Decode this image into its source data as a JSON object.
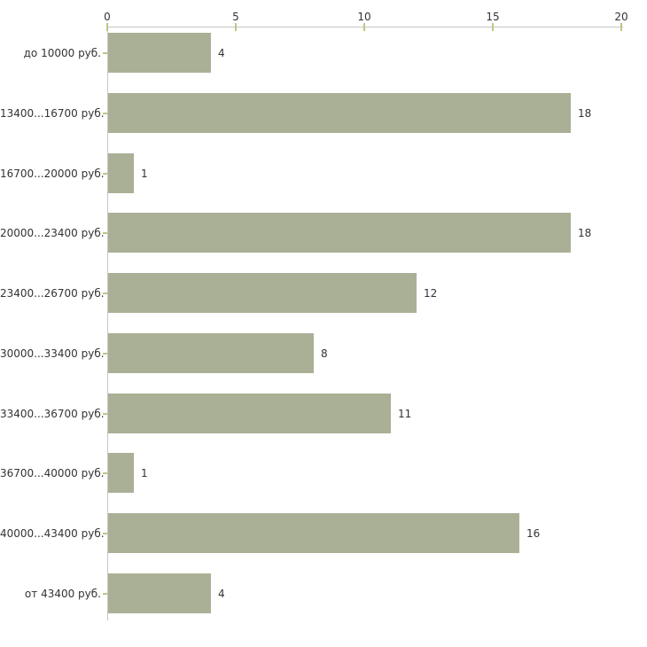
{
  "chart_data": {
    "type": "bar",
    "orientation": "horizontal",
    "title": "",
    "xlabel": "",
    "ylabel": "",
    "categories": [
      "до 10000 руб.",
      "13400...16700 руб.",
      "16700...20000 руб.",
      "20000...23400 руб.",
      "23400...26700 руб.",
      "30000...33400 руб.",
      "33400...36700 руб.",
      "36700...40000 руб.",
      "40000...43400 руб.",
      "от 43400 руб."
    ],
    "values": [
      4,
      18,
      1,
      18,
      12,
      8,
      11,
      1,
      16,
      4
    ],
    "xlim": [
      0,
      20
    ],
    "x_ticks": [
      0,
      5,
      10,
      15,
      20
    ],
    "axis_position": "top",
    "grid": false,
    "legend": false,
    "value_labels_shown": true,
    "colors": {
      "bar_fill": "#aab096",
      "axis_line": "#c6c6c6",
      "tick_mark": "#c2c483",
      "text": "#333333",
      "background": "#ffffff"
    }
  }
}
